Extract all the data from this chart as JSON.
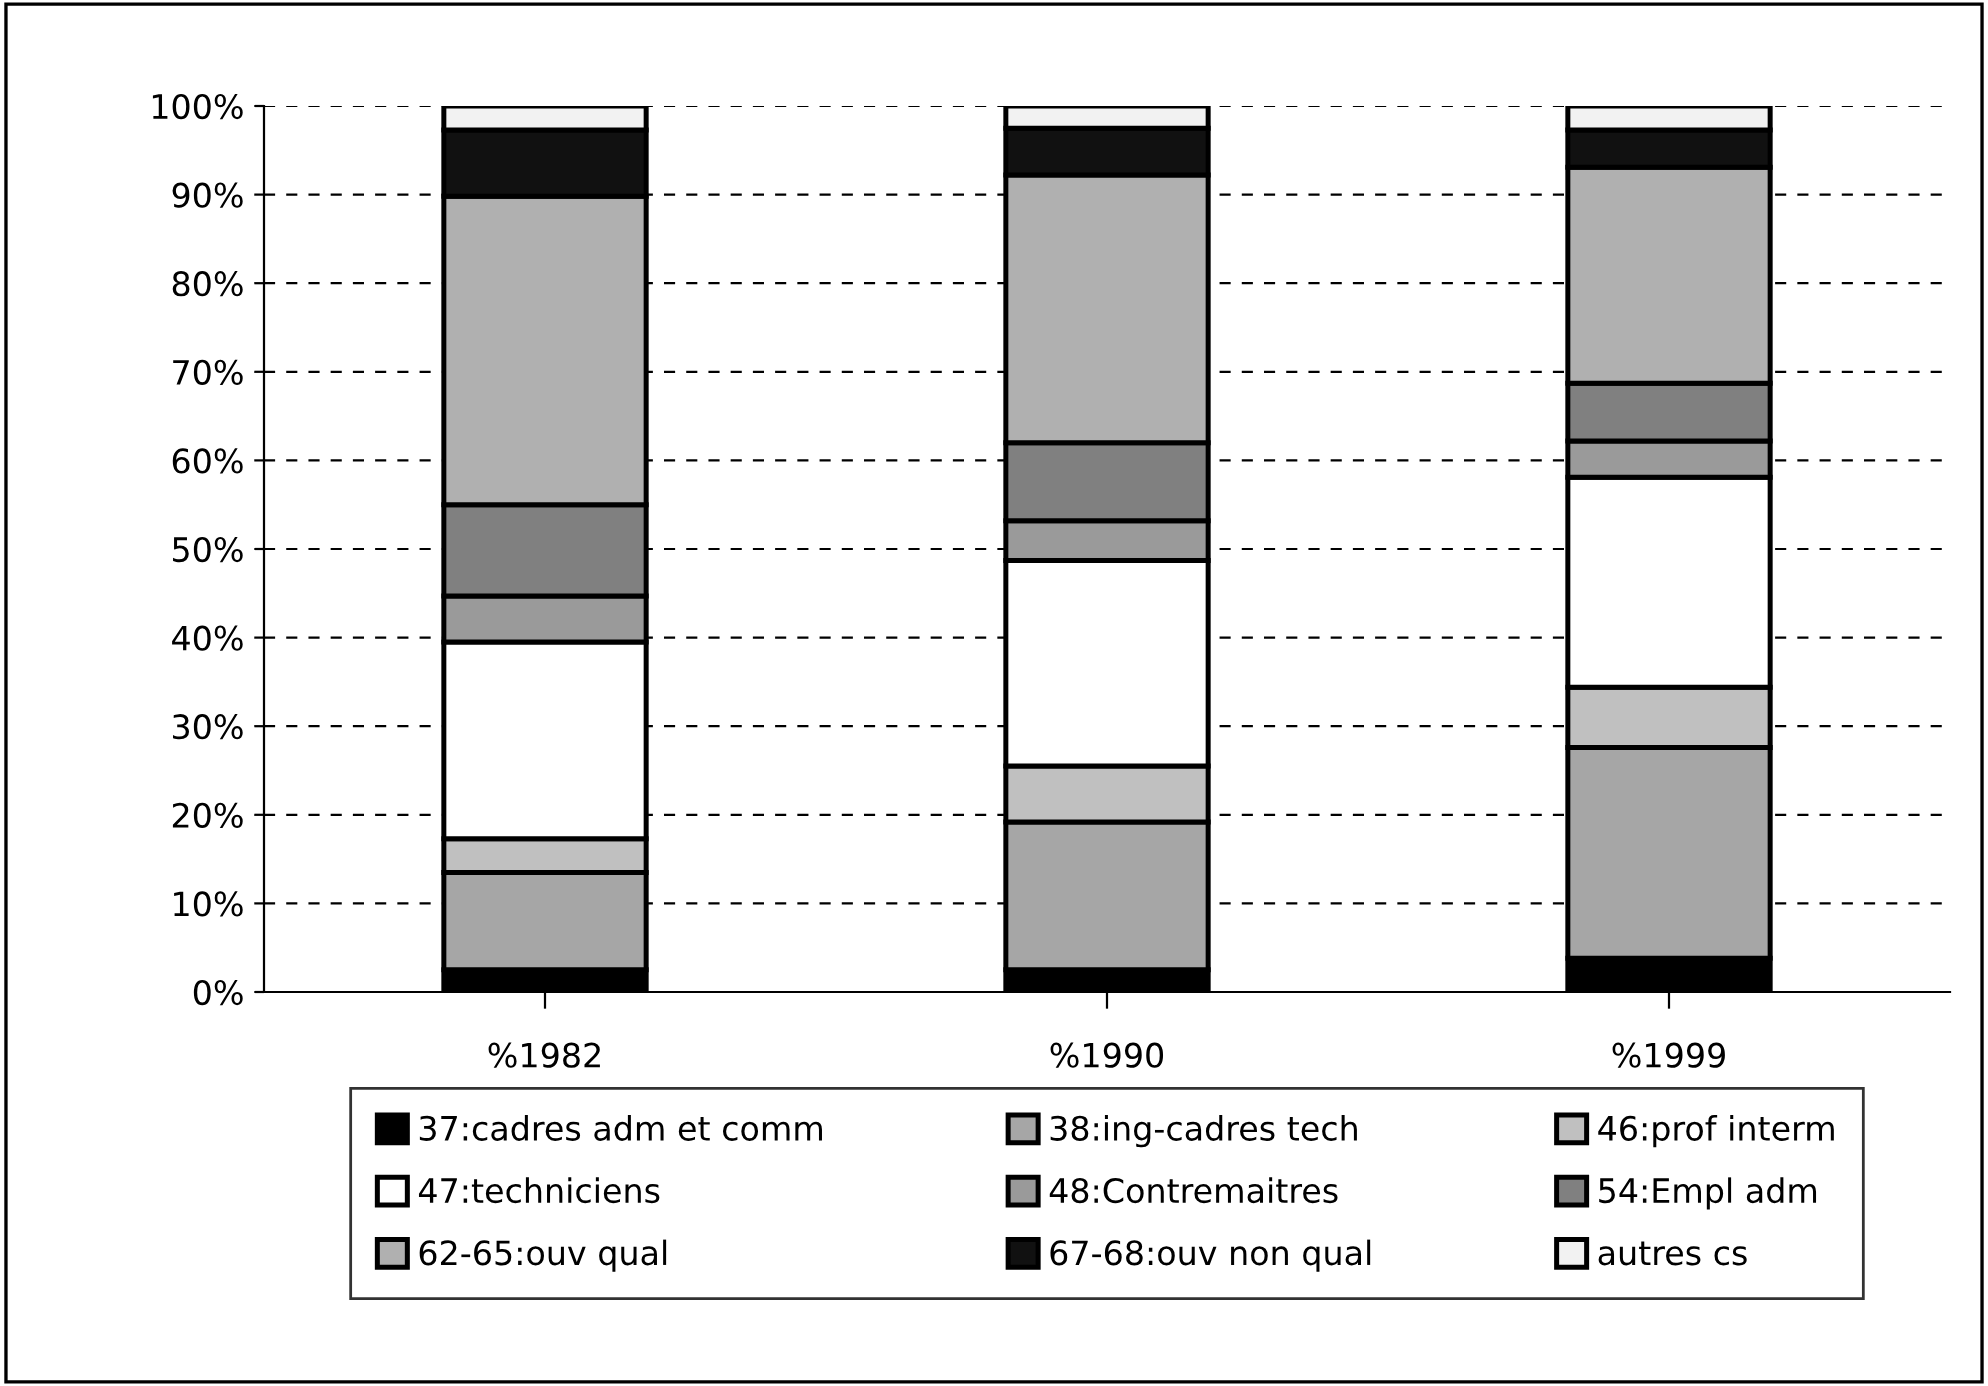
{
  "chart_data": {
    "type": "bar",
    "stacked": true,
    "categories": [
      "%1982",
      "%1990",
      "%1999"
    ],
    "series": [
      {
        "name": "37:cadres adm et comm",
        "color": "#000000",
        "values": [
          2.5,
          2.5,
          3.8
        ]
      },
      {
        "name": "38:ing-cadres tech",
        "color": "#a6a6a6",
        "values": [
          11,
          16.7,
          23.8
        ]
      },
      {
        "name": "46:prof interm",
        "color": "#c0c0c0",
        "values": [
          3.8,
          6.3,
          6.8
        ]
      },
      {
        "name": "47:techniciens",
        "color": "#ffffff",
        "values": [
          22.2,
          23.2,
          23.7
        ]
      },
      {
        "name": "48:Contremaitres",
        "color": "#9a9a9a",
        "values": [
          5.2,
          4.5,
          4.1
        ]
      },
      {
        "name": "54:Empl adm",
        "color": "#808080",
        "values": [
          10.3,
          8.8,
          6.5
        ]
      },
      {
        "name": "62-65:ouv qual",
        "color": "#b0b0b0",
        "values": [
          34.8,
          30.2,
          24.4
        ]
      },
      {
        "name": "67-68:ouv non qual",
        "color": "#111111",
        "values": [
          7.5,
          5.3,
          4.2
        ]
      },
      {
        "name": "autres cs",
        "color": "#f2f2f2",
        "values": [
          2.7,
          2.5,
          2.7
        ]
      }
    ],
    "ylim": [
      0,
      100
    ],
    "yticks": [
      {
        "value": 0,
        "label": "0%"
      },
      {
        "value": 10,
        "label": "10%"
      },
      {
        "value": 20,
        "label": "20%"
      },
      {
        "value": 30,
        "label": "30%"
      },
      {
        "value": 40,
        "label": "40%"
      },
      {
        "value": 50,
        "label": "50%"
      },
      {
        "value": 60,
        "label": "60%"
      },
      {
        "value": 70,
        "label": "70%"
      },
      {
        "value": 80,
        "label": "80%"
      },
      {
        "value": 90,
        "label": "90%"
      },
      {
        "value": 100,
        "label": "100%"
      }
    ],
    "grid": "y",
    "legend": "bottom"
  }
}
